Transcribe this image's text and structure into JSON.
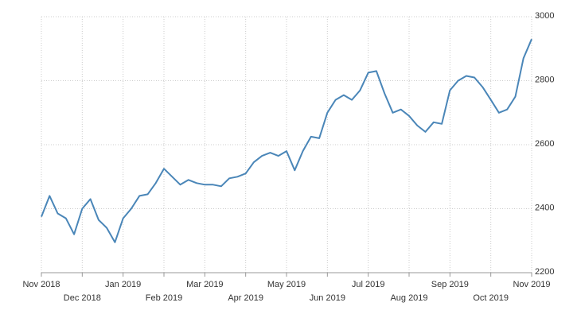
{
  "chart_data": {
    "type": "line",
    "categories": [
      "Nov 2018",
      null,
      null,
      null,
      null,
      "Dec 2018",
      null,
      null,
      null,
      null,
      "Jan 2019",
      null,
      null,
      null,
      null,
      "Feb 2019",
      null,
      null,
      null,
      null,
      "Mar 2019",
      null,
      null,
      null,
      null,
      "Apr 2019",
      null,
      null,
      null,
      null,
      "May 2019",
      null,
      null,
      null,
      null,
      "Jun 2019",
      null,
      null,
      null,
      null,
      "Jul 2019",
      null,
      null,
      null,
      null,
      "Aug 2019",
      null,
      null,
      null,
      null,
      "Sep 2019",
      null,
      null,
      null,
      null,
      "Oct 2019",
      null,
      null,
      null,
      null,
      "Nov 2019"
    ],
    "values": [
      2375,
      2440,
      2385,
      2370,
      2320,
      2400,
      2430,
      2365,
      2340,
      2295,
      2370,
      2400,
      2440,
      2445,
      2480,
      2525,
      2500,
      2475,
      2490,
      2480,
      2475,
      2475,
      2470,
      2495,
      2500,
      2510,
      2545,
      2565,
      2575,
      2565,
      2580,
      2520,
      2580,
      2625,
      2620,
      2700,
      2740,
      2755,
      2740,
      2770,
      2825,
      2830,
      2760,
      2700,
      2710,
      2690,
      2660,
      2640,
      2670,
      2665,
      2770,
      2800,
      2815,
      2810,
      2780,
      2740,
      2700,
      2710,
      2750,
      2870,
      2930
    ],
    "color": "#4a86b8",
    "ylim": [
      2200,
      3000
    ],
    "yticks": [
      2200,
      2400,
      2600,
      2800,
      3000
    ],
    "grid": true
  }
}
